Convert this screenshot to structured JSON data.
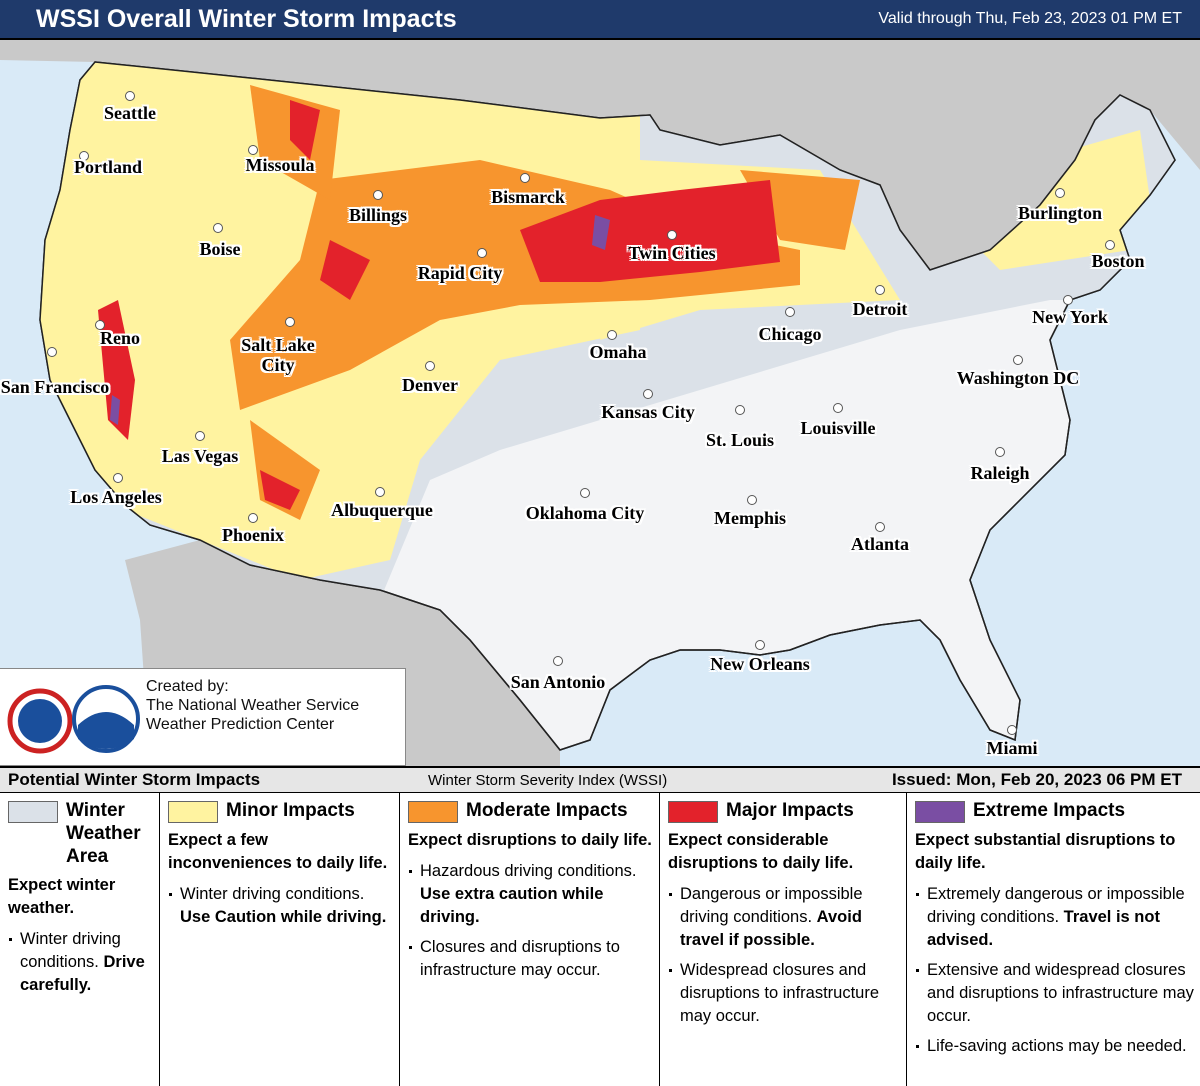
{
  "header": {
    "title": "WSSI Overall Winter Storm Impacts",
    "valid": "Valid through Thu, Feb 23, 2023 01 PM ET"
  },
  "cities": [
    "Seattle",
    "Portland",
    "Missoula",
    "Billings",
    "Boise",
    "Bismarck",
    "Twin Cities",
    "Rapid City",
    "Burlington",
    "Boston",
    "Detroit",
    "Chicago",
    "New York",
    "Omaha",
    "Reno",
    "Salt Lake City",
    "San Francisco",
    "Denver",
    "Washington DC",
    "Kansas City",
    "St. Louis",
    "Louisville",
    "Las Vegas",
    "Raleigh",
    "Los Angeles",
    "Albuquerque",
    "Oklahoma City",
    "Memphis",
    "Phoenix",
    "Atlanta",
    "San Antonio",
    "New Orleans",
    "Miami"
  ],
  "credit": {
    "heading": "Created by:",
    "lines": [
      "The National Weather Service",
      "Weather Prediction Center"
    ]
  },
  "legend": {
    "title": "Potential Winter Storm Impacts",
    "index": "Winter Storm Severity Index (WSSI)",
    "issued": "Issued: Mon, Feb 20, 2023 06 PM ET",
    "categories": [
      {
        "name": "Winter Weather Area",
        "color": "#dbe1e8",
        "summary": "Expect winter weather.",
        "bullets": [
          {
            "text": "Winter driving conditions.",
            "bold": "Drive carefully."
          }
        ]
      },
      {
        "name": "Minor Impacts",
        "color": "#fff3a0",
        "summary": "Expect a few inconveniences to daily life.",
        "bullets": [
          {
            "text": "Winter driving conditions.",
            "bold": "Use Caution while driving."
          }
        ]
      },
      {
        "name": "Moderate Impacts",
        "color": "#f7952e",
        "summary": "Expect disruptions to daily life.",
        "bullets": [
          {
            "text": "Hazardous driving conditions.",
            "bold": "Use extra caution while driving."
          },
          {
            "text": "Closures and disruptions to infrastructure may occur."
          }
        ]
      },
      {
        "name": "Major Impacts",
        "color": "#e3222b",
        "summary": "Expect considerable disruptions to daily life.",
        "bullets": [
          {
            "text": "Dangerous or impossible driving conditions.",
            "bold": "Avoid travel if possible."
          },
          {
            "text": "Widespread closures and disruptions to infrastructure may occur."
          }
        ]
      },
      {
        "name": "Extreme Impacts",
        "color": "#7a4ea3",
        "summary": "Expect substantial disruptions to daily life.",
        "bullets": [
          {
            "text": "Extremely dangerous or impossible driving conditions.",
            "bold": "Travel is not advised."
          },
          {
            "text": "Extensive and widespread closures and disruptions to infrastructure may occur."
          },
          {
            "text": "Life-saving actions may be needed."
          }
        ]
      }
    ]
  }
}
